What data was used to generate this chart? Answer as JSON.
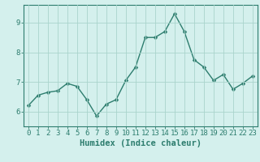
{
  "x": [
    0,
    1,
    2,
    3,
    4,
    5,
    6,
    7,
    8,
    9,
    10,
    11,
    12,
    13,
    14,
    15,
    16,
    17,
    18,
    19,
    20,
    21,
    22,
    23
  ],
  "y": [
    6.2,
    6.55,
    6.65,
    6.7,
    6.95,
    6.85,
    6.4,
    5.85,
    6.25,
    6.4,
    7.05,
    7.5,
    8.5,
    8.5,
    8.7,
    9.3,
    8.7,
    7.75,
    7.5,
    7.05,
    7.25,
    6.75,
    6.95,
    7.2
  ],
  "line_color": "#2d7d6e",
  "marker": "D",
  "marker_size": 2.5,
  "bg_color": "#d4f0ed",
  "grid_color": "#aad4cc",
  "xlabel": "Humidex (Indice chaleur)",
  "xlim": [
    -0.5,
    23.5
  ],
  "ylim": [
    5.5,
    9.6
  ],
  "yticks": [
    6,
    7,
    8,
    9
  ],
  "xticks": [
    0,
    1,
    2,
    3,
    4,
    5,
    6,
    7,
    8,
    9,
    10,
    11,
    12,
    13,
    14,
    15,
    16,
    17,
    18,
    19,
    20,
    21,
    22,
    23
  ],
  "tick_label_fontsize": 6.5,
  "xlabel_fontsize": 7.5,
  "line_width": 1.0
}
